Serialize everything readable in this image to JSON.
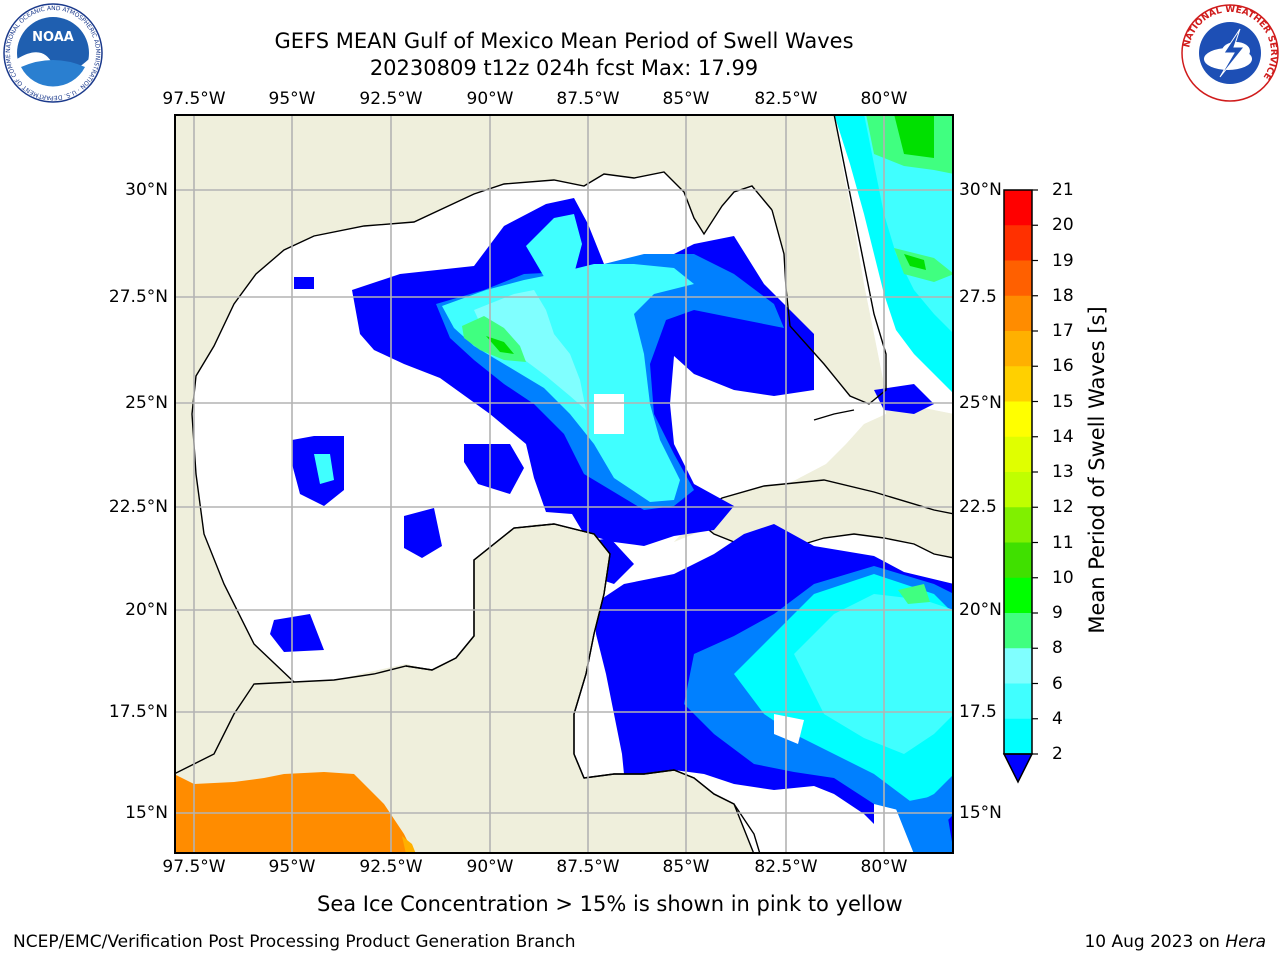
{
  "header": {
    "title_line1": "GEFS MEAN Gulf of Mexico Mean Period of Swell Waves",
    "title_line2": "20230809 t12z 024h fcst   Max: 17.99"
  },
  "map": {
    "lon_labels": [
      "97.5°W",
      "95°W",
      "92.5°W",
      "90°W",
      "87.5°W",
      "85°W",
      "82.5°W",
      "80°W"
    ],
    "lat_labels_left": [
      "30°N",
      "27.5°N",
      "25°N",
      "22.5°N",
      "20°N",
      "17.5°N",
      "15°N"
    ],
    "lat_labels_right": [
      "30°N",
      "27.5",
      "25°N",
      "22.5",
      "20°N",
      "17.5",
      "15°N"
    ],
    "colors": {
      "land": "#efefdc",
      "water": "#ffffff",
      "grid": "#b3b3b3"
    }
  },
  "colorbar": {
    "label": "Mean Period of Swell Waves [s]",
    "ticks": [
      "2",
      "4",
      "6",
      "8",
      "9",
      "10",
      "11",
      "12",
      "13",
      "14",
      "15",
      "16",
      "17",
      "18",
      "19",
      "20",
      "21"
    ],
    "colors": [
      "#0000ff",
      "#0080ff",
      "#00ffff",
      "#40ffff",
      "#80ffff",
      "#40ff80",
      "#00ff00",
      "#40e000",
      "#80f000",
      "#c0ff00",
      "#e0ff00",
      "#ffff00",
      "#ffd000",
      "#ffb000",
      "#ff8c00",
      "#ff6000",
      "#ff3000",
      "#ff0000"
    ]
  },
  "footer": {
    "note": "Sea Ice Concentration > 15% is shown in pink to yellow",
    "credit": "NCEP/EMC/Verification Post Processing Product Generation Branch",
    "date_prefix": "10 Aug 2023 on",
    "host": "Hera"
  },
  "logos": {
    "left_text": "NOAA",
    "left_ring": "NATIONAL OCEANIC AND ATMOSPHERIC ADMINISTRATION · U.S. DEPARTMENT OF COMMERCE",
    "right_ring": "NATIONAL WEATHER SERVICE"
  }
}
